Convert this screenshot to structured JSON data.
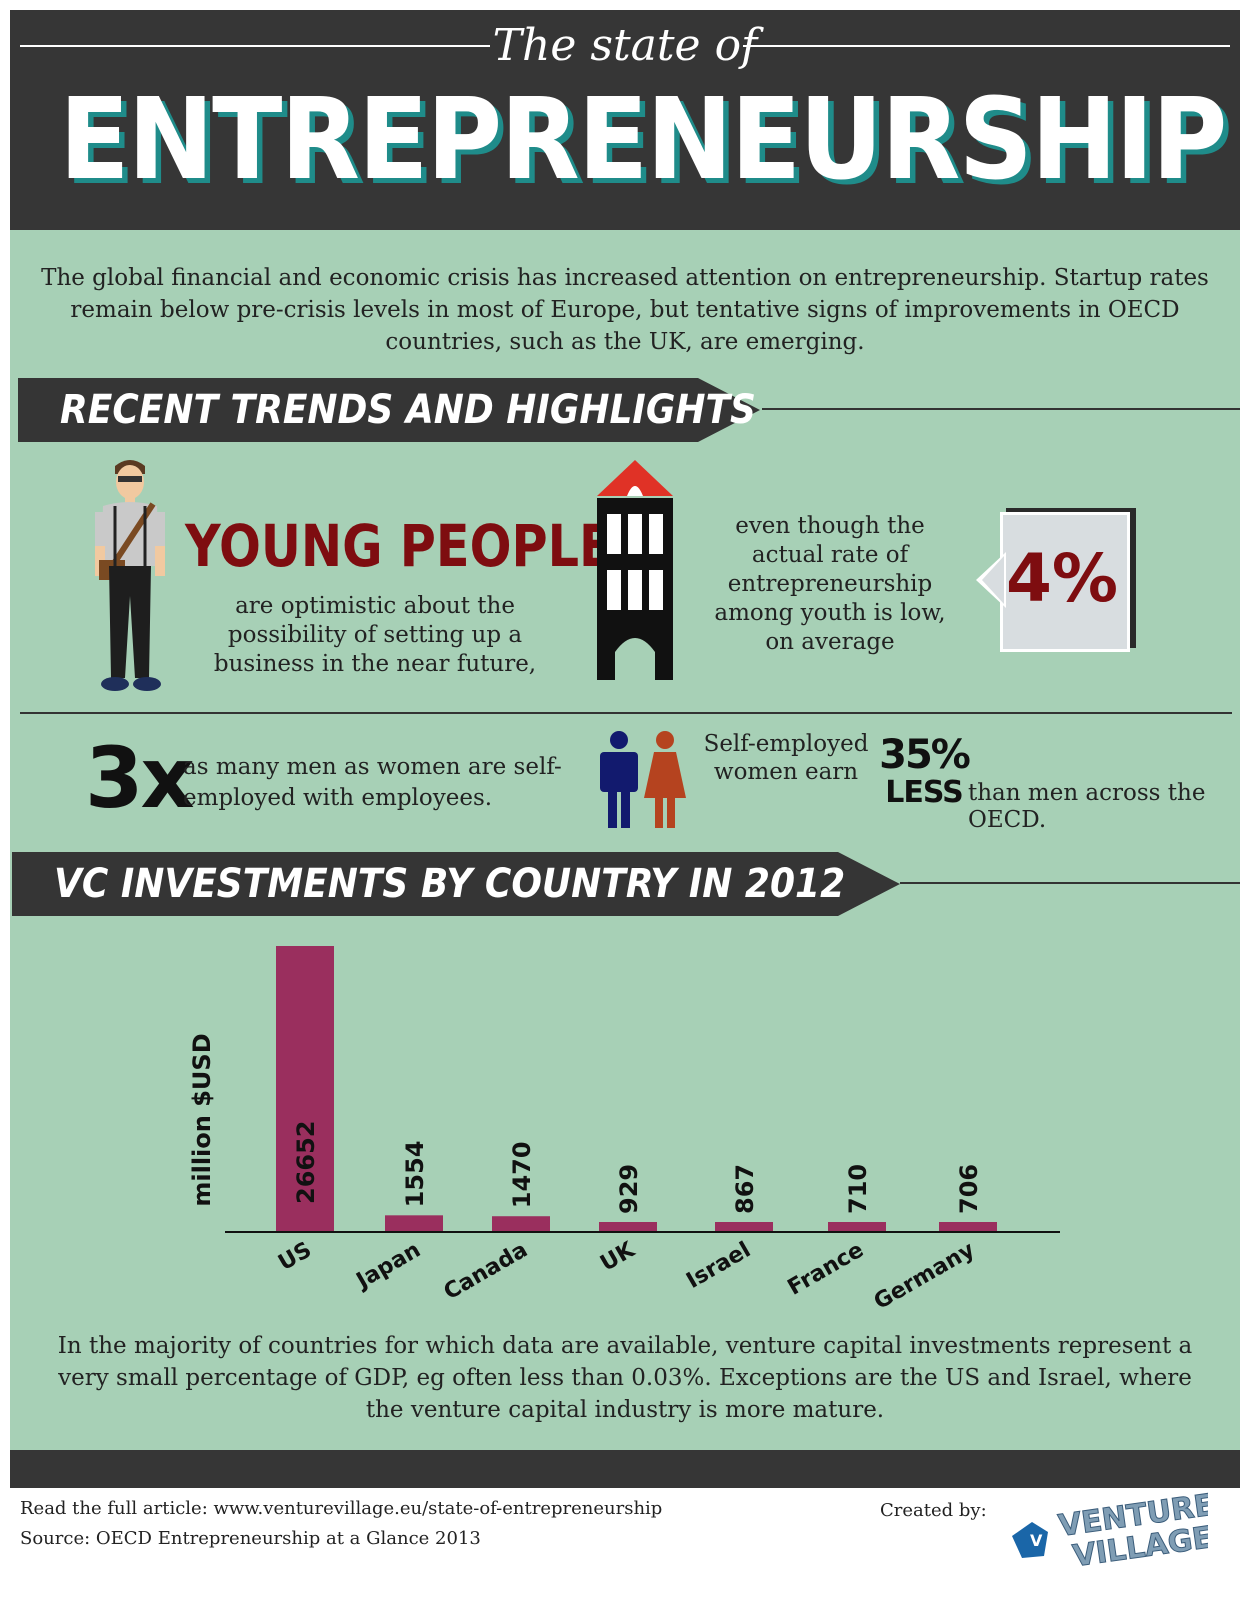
{
  "header": {
    "subtitle": "The state of",
    "title": "ENTREPRENEURSHIP"
  },
  "intro": "The global financial and economic crisis has increased attention on entrepreneurship. Startup rates remain below pre-crisis levels in most of Europe, but tentative signs of improvements in OECD countries, such as the UK, are emerging.",
  "trends": {
    "heading": "RECENT TRENDS AND HIGHLIGHTS",
    "young_title": "YOUNG PEOPLE",
    "young_text": "are optimistic about the possibility of setting up a business in the near future,",
    "youth_text": "even though the actual rate of entrepreneurship among youth is low, on average",
    "youth_rate": "4%",
    "men_multiplier": "3x",
    "men_text": "as many men as women are self-employed with employees.",
    "earn_text": "Self-employed women earn",
    "earn_pct": "35%",
    "earn_less": "LESS",
    "earn_tail": "than men across the OECD."
  },
  "vc": {
    "heading": "VC INVESTMENTS BY COUNTRY IN 2012"
  },
  "chart_data": {
    "type": "bar",
    "categories": [
      "US",
      "Japan",
      "Canada",
      "UK",
      "Israel",
      "France",
      "Germany"
    ],
    "values": [
      26652,
      1554,
      1470,
      929,
      867,
      710,
      706
    ],
    "ylabel": "million $USD",
    "bar_color": "#9a2f5e"
  },
  "closing": "In the majority of countries for which data are available, venture capital investments represent a very small percentage of GDP, eg often less than 0.03%. Exceptions are the US and Israel, where the venture capital industry is more mature.",
  "footer": {
    "read_more": "Read the full article: www.venturevillage.eu/state-of-entrepreneurship",
    "source": "Source: OECD Entrepreneurship at a Glance 2013",
    "created_by": "Created by:",
    "logo_text_1": "VENTURE",
    "logo_text_2": "VILLAGE"
  },
  "colors": {
    "background": "#a7d0b6",
    "dark": "#363636",
    "accent_red": "#7e0d10",
    "title_shadow": "#1f8c8a"
  }
}
